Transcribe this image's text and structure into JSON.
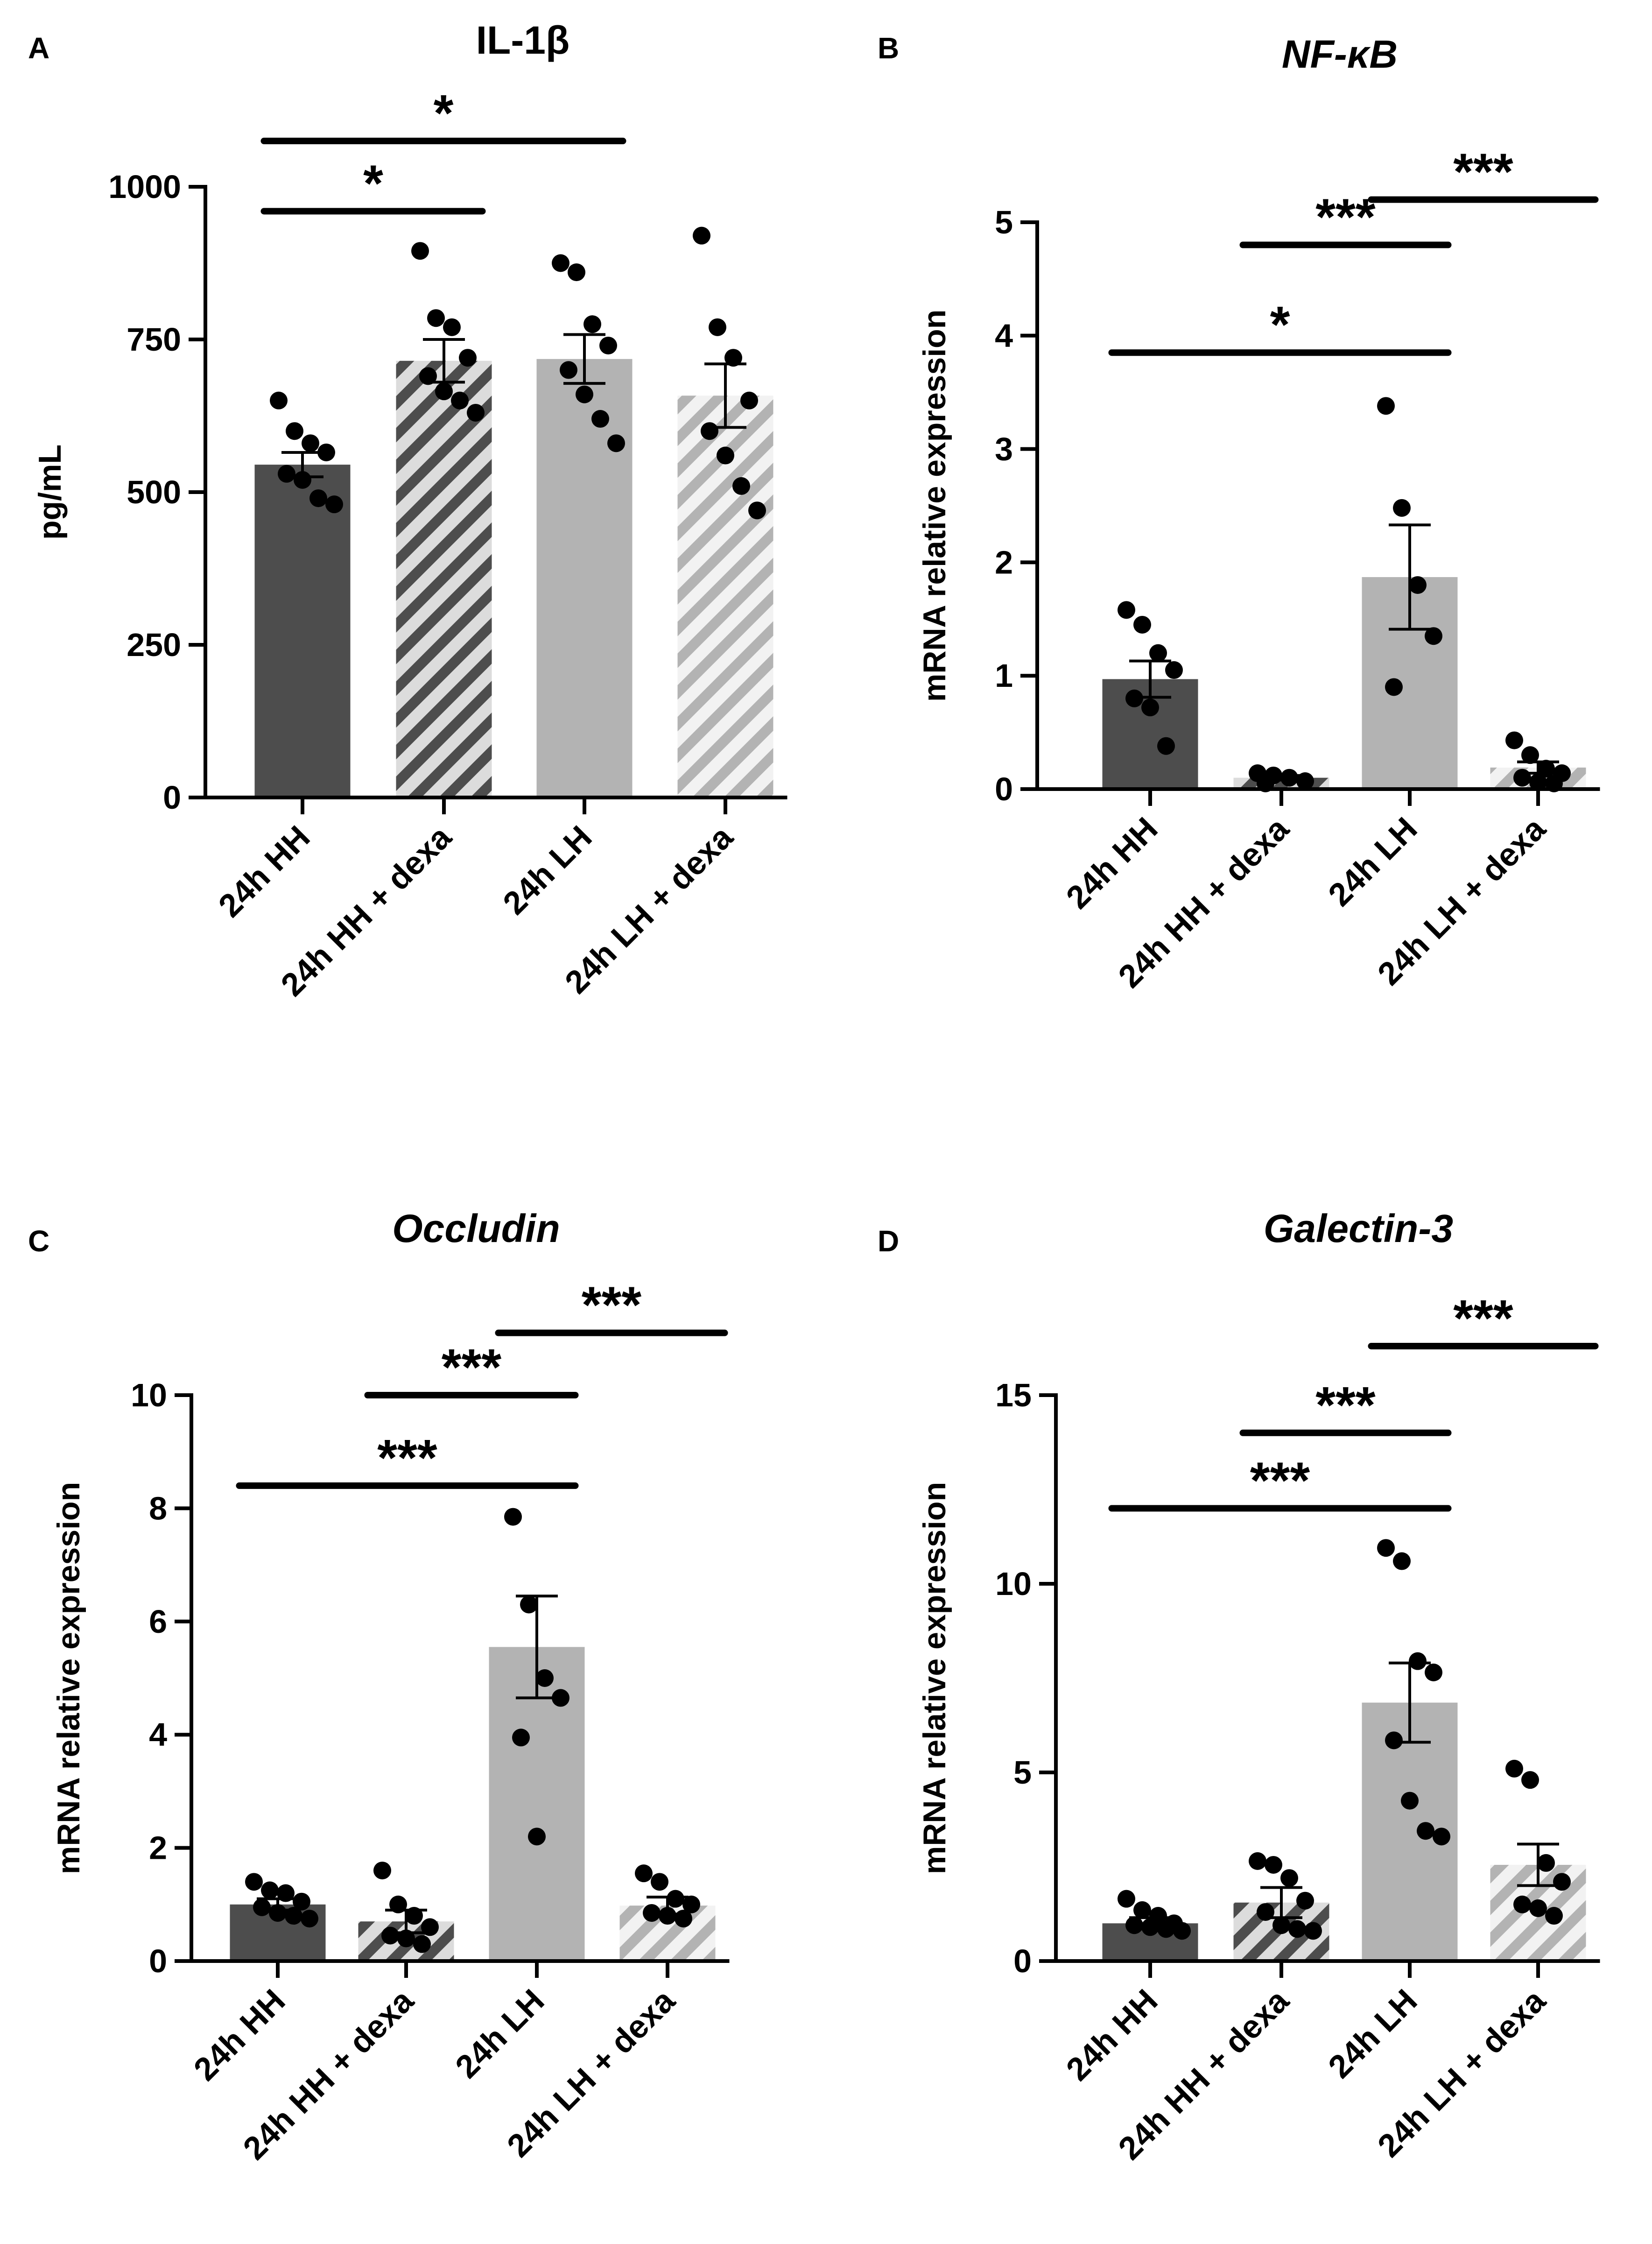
{
  "colors": {
    "hh": "#4d4d4d",
    "hh_hatch_light": "#dcdcdc",
    "lh": "#b3b3b3",
    "lh_hatch_light": "#f2f2f2",
    "axis": "#000000",
    "points": "#000000"
  },
  "chart_data": [
    {
      "panel": "A",
      "type": "bar",
      "title": "IL-1β",
      "title_italic": false,
      "xlabel": "",
      "ylabel": "pg/mL",
      "ylim": [
        0,
        1000
      ],
      "yticks": [
        0,
        250,
        500,
        750,
        1000
      ],
      "categories": [
        "24h HH",
        "24h HH + dexa",
        "24h LH",
        "24h LH + dexa"
      ],
      "styles": [
        "solid-dark",
        "hatch-dark",
        "solid-light",
        "hatch-light"
      ],
      "values": [
        545,
        715,
        718,
        658
      ],
      "sem": [
        20,
        35,
        40,
        52
      ],
      "points": [
        [
          650,
          600,
          580,
          565,
          530,
          520,
          490,
          480
        ],
        [
          895,
          785,
          770,
          720,
          690,
          665,
          650,
          630
        ],
        [
          875,
          860,
          775,
          740,
          700,
          660,
          620,
          580
        ],
        [
          920,
          770,
          720,
          650,
          600,
          560,
          510,
          470
        ]
      ],
      "significance": [
        {
          "from": 0,
          "to": 2,
          "y": 1075,
          "label": "*"
        },
        {
          "from": 0,
          "to": 1,
          "y": 960,
          "label": "*"
        }
      ]
    },
    {
      "panel": "B",
      "type": "bar",
      "title": "NF-κB",
      "title_italic": true,
      "xlabel": "",
      "ylabel": "mRNA relative expression",
      "ylim": [
        0,
        5
      ],
      "yticks": [
        0,
        1,
        2,
        3,
        4,
        5
      ],
      "categories": [
        "24h HH",
        "24h HH + dexa",
        "24h LH",
        "24h LH + dexa"
      ],
      "styles": [
        "solid-dark",
        "hatch-dark",
        "solid-light",
        "hatch-light"
      ],
      "values": [
        0.97,
        0.1,
        1.87,
        0.19
      ],
      "sem": [
        0.16,
        0.02,
        0.46,
        0.05
      ],
      "points": [
        [
          1.58,
          1.45,
          1.2,
          1.05,
          0.8,
          0.72,
          0.38
        ],
        [
          0.14,
          0.12,
          0.1,
          0.07,
          0.05
        ],
        [
          3.38,
          2.48,
          1.8,
          1.35,
          0.9
        ],
        [
          0.43,
          0.3,
          0.18,
          0.14,
          0.1,
          0.06,
          0.05
        ]
      ],
      "significance": [
        {
          "from": 2,
          "to": 3,
          "y": 5.2,
          "label": "***"
        },
        {
          "from": 1,
          "to": 2,
          "y": 4.8,
          "label": "***"
        },
        {
          "from": 0,
          "to": 2,
          "y": 3.85,
          "label": "*"
        }
      ]
    },
    {
      "panel": "C",
      "type": "bar",
      "title": "Occludin",
      "title_italic": true,
      "xlabel": "",
      "ylabel": "mRNA relative expression",
      "ylim": [
        0,
        10
      ],
      "yticks": [
        0,
        2,
        4,
        6,
        8,
        10
      ],
      "categories": [
        "24h HH",
        "24h HH + dexa",
        "24h LH",
        "24h LH + dexa"
      ],
      "styles": [
        "solid-dark",
        "hatch-dark",
        "solid-light",
        "hatch-light"
      ],
      "values": [
        1.0,
        0.7,
        5.55,
        0.98
      ],
      "sem": [
        0.1,
        0.2,
        0.9,
        0.15
      ],
      "points": [
        [
          1.4,
          1.25,
          1.2,
          1.05,
          0.95,
          0.85,
          0.8,
          0.75
        ],
        [
          1.6,
          1.0,
          0.8,
          0.6,
          0.45,
          0.4,
          0.3
        ],
        [
          7.85,
          6.3,
          5.0,
          4.65,
          3.95,
          2.2
        ],
        [
          1.55,
          1.4,
          1.1,
          1.0,
          0.85,
          0.8,
          0.75
        ]
      ],
      "significance": [
        {
          "from": 2,
          "to": 3,
          "y": 11.1,
          "label": "***"
        },
        {
          "from": 1,
          "to": 2,
          "y": 10.0,
          "label": "***"
        },
        {
          "from": 0,
          "to": 2,
          "y": 8.4,
          "label": "***"
        }
      ]
    },
    {
      "panel": "D",
      "type": "bar",
      "title": "Galectin-3",
      "title_italic": true,
      "xlabel": "",
      "ylabel": "mRNA relative expression",
      "ylim": [
        0,
        15
      ],
      "yticks": [
        0,
        5,
        10,
        15
      ],
      "categories": [
        "24h HH",
        "24h HH + dexa",
        "24h LH",
        "24h LH + dexa"
      ],
      "styles": [
        "solid-dark",
        "hatch-dark",
        "solid-light",
        "hatch-light"
      ],
      "values": [
        1.0,
        1.55,
        6.85,
        2.55
      ],
      "sem": [
        0.15,
        0.4,
        1.05,
        0.55
      ],
      "points": [
        [
          1.65,
          1.35,
          1.2,
          1.0,
          0.95,
          0.9,
          0.85,
          0.8
        ],
        [
          2.65,
          2.55,
          2.2,
          1.6,
          1.3,
          0.95,
          0.85,
          0.8
        ],
        [
          10.95,
          10.6,
          7.95,
          7.65,
          5.85,
          4.25,
          3.45,
          3.3
        ],
        [
          5.1,
          4.8,
          2.6,
          2.1,
          1.5,
          1.4,
          1.2
        ]
      ],
      "significance": [
        {
          "from": 2,
          "to": 3,
          "y": 16.3,
          "label": "***"
        },
        {
          "from": 1,
          "to": 2,
          "y": 14.0,
          "label": "***"
        },
        {
          "from": 0,
          "to": 2,
          "y": 12.0,
          "label": "***"
        }
      ]
    }
  ]
}
